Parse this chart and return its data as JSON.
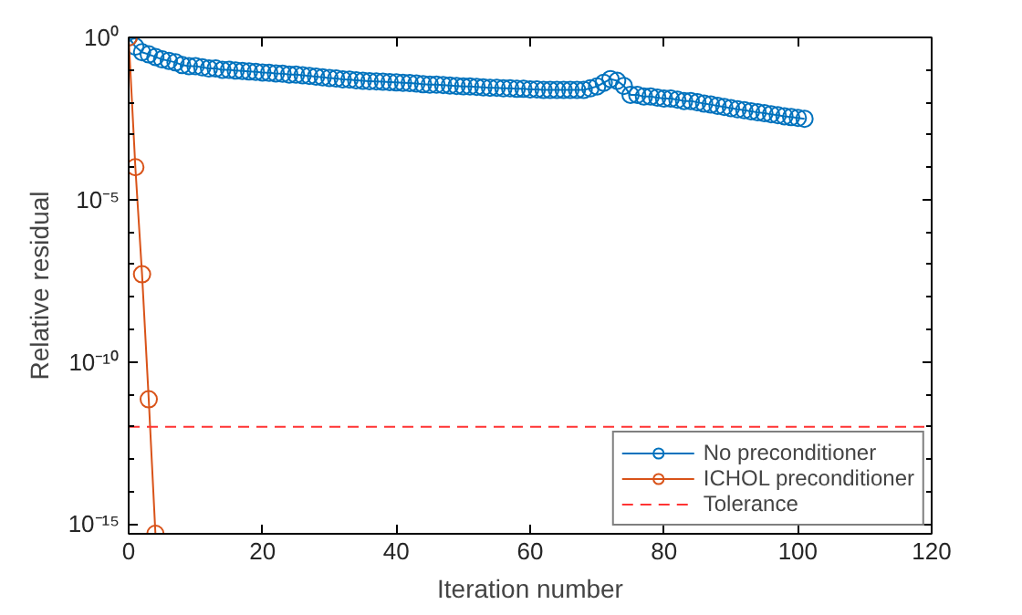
{
  "chart_data": {
    "type": "line",
    "xlabel": "Iteration number",
    "ylabel": "Relative residual",
    "log": "y",
    "xlim": [
      0,
      120
    ],
    "xticks": [
      0,
      20,
      40,
      60,
      80,
      100,
      120
    ],
    "ylim": [
      5e-16,
      1
    ],
    "yticks": [
      {
        "value": 1,
        "label": "10⁰"
      },
      {
        "value": 0.1,
        "label": null
      },
      {
        "value": 0.01,
        "label": null
      },
      {
        "value": 0.001,
        "label": null
      },
      {
        "value": 0.0001,
        "label": null
      },
      {
        "value": 1e-05,
        "label": "10⁻⁵"
      },
      {
        "value": 1e-06,
        "label": null
      },
      {
        "value": 1e-07,
        "label": null
      },
      {
        "value": 1e-08,
        "label": null
      },
      {
        "value": 1e-09,
        "label": null
      },
      {
        "value": 1e-10,
        "label": "10⁻¹⁰"
      },
      {
        "value": 1e-11,
        "label": null
      },
      {
        "value": 1e-12,
        "label": null
      },
      {
        "value": 1e-13,
        "label": null
      },
      {
        "value": 1e-14,
        "label": null
      },
      {
        "value": 1e-15,
        "label": "10⁻¹⁵"
      }
    ],
    "grid": false,
    "legend": "bottom right",
    "marker": "circle",
    "line_style": "solid",
    "x": [
      0,
      1,
      2,
      3,
      4,
      5,
      6,
      7,
      8,
      9,
      10,
      11,
      12,
      13,
      14,
      15,
      16,
      17,
      18,
      19,
      20,
      21,
      22,
      23,
      24,
      25,
      26,
      27,
      28,
      29,
      30,
      31,
      32,
      33,
      34,
      35,
      36,
      37,
      38,
      39,
      40,
      41,
      42,
      43,
      44,
      45,
      46,
      47,
      48,
      49,
      50,
      51,
      52,
      53,
      54,
      55,
      56,
      57,
      58,
      59,
      60,
      61,
      62,
      63,
      64,
      65,
      66,
      67,
      68,
      69,
      70,
      71,
      72,
      73,
      74,
      75,
      76,
      77,
      78,
      79,
      80,
      81,
      82,
      83,
      84,
      85,
      86,
      87,
      88,
      89,
      90,
      91,
      92,
      93,
      94,
      95,
      96,
      97,
      98,
      99,
      100,
      101
    ],
    "series": [
      {
        "name": "No preconditioner",
        "color": "#0072bd",
        "values": [
          1,
          0.52,
          0.35,
          0.3,
          0.25,
          0.21,
          0.19,
          0.17,
          0.14,
          0.13,
          0.13,
          0.12,
          0.11,
          0.11,
          0.1,
          0.1,
          0.095,
          0.093,
          0.089,
          0.087,
          0.083,
          0.081,
          0.078,
          0.076,
          0.072,
          0.071,
          0.068,
          0.065,
          0.062,
          0.059,
          0.056,
          0.054,
          0.051,
          0.05,
          0.048,
          0.046,
          0.045,
          0.044,
          0.043,
          0.042,
          0.041,
          0.04,
          0.039,
          0.038,
          0.036,
          0.035,
          0.035,
          0.034,
          0.033,
          0.032,
          0.031,
          0.031,
          0.03,
          0.029,
          0.028,
          0.028,
          0.027,
          0.027,
          0.026,
          0.026,
          0.025,
          0.025,
          0.024,
          0.024,
          0.024,
          0.024,
          0.024,
          0.024,
          0.024,
          0.027,
          0.031,
          0.04,
          0.052,
          0.046,
          0.032,
          0.017,
          0.017,
          0.015,
          0.015,
          0.014,
          0.013,
          0.013,
          0.012,
          0.011,
          0.011,
          0.01,
          0.0091,
          0.0085,
          0.0078,
          0.0072,
          0.0066,
          0.0061,
          0.0057,
          0.0053,
          0.0049,
          0.0046,
          0.0043,
          0.004,
          0.0037,
          0.0035,
          0.0033,
          0.0031
        ]
      },
      {
        "name": "ICHOL preconditioner",
        "color": "#d95319",
        "x": [
          0,
          1,
          2,
          3,
          4
        ],
        "values": [
          1,
          0.0001,
          5e-08,
          7e-12,
          5e-16
        ]
      }
    ],
    "ref_lines": [
      {
        "axis": "y",
        "value": 1e-12,
        "label": "Tolerance",
        "color": "#ff3333",
        "line_style": "dashed"
      }
    ]
  }
}
